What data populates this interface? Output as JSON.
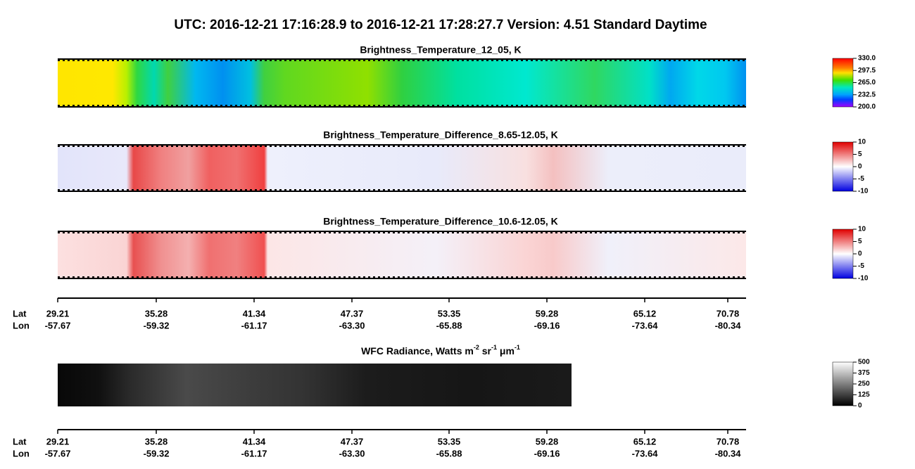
{
  "header": {
    "title": "UTC:  2016-12-21   17:16:28.9  to  2016-12-21   17:28:27.7    Version: 4.51  Standard Daytime"
  },
  "panels": [
    {
      "title": "Brightness_Temperature_12_05, K",
      "colorbar": [
        "330.0",
        "297.5",
        "265.0",
        "232.5",
        "200.0"
      ]
    },
    {
      "title": "Brightness_Temperature_Difference_8.65-12.05, K",
      "colorbar": [
        "10",
        "5",
        "0",
        "-5",
        "-10"
      ]
    },
    {
      "title": "Brightness_Temperature_Difference_10.6-12.05, K",
      "colorbar": [
        "10",
        "5",
        "0",
        "-5",
        "-10"
      ]
    },
    {
      "title_parts": [
        "WFC Radiance, Watts m",
        "-2",
        " sr",
        "-1",
        " μm",
        "-1"
      ],
      "colorbar": [
        "500",
        "375",
        "250",
        "125",
        "0"
      ]
    }
  ],
  "axes": [
    {
      "row_labels": [
        "Lat",
        "Lon"
      ],
      "lat": [
        "29.21",
        "35.28",
        "41.34",
        "47.37",
        "53.35",
        "59.28",
        "65.12",
        "70.78"
      ],
      "lon": [
        "-57.67",
        "-59.32",
        "-61.17",
        "-63.30",
        "-65.88",
        "-69.16",
        "-73.64",
        "-80.34"
      ]
    },
    {
      "row_labels": [
        "Lat",
        "Lon"
      ],
      "lat": [
        "29.21",
        "35.28",
        "41.34",
        "47.37",
        "53.35",
        "59.28",
        "65.12",
        "70.78"
      ],
      "lon": [
        "-57.67",
        "-59.32",
        "-61.17",
        "-63.30",
        "-65.88",
        "-69.16",
        "-73.64",
        "-80.34"
      ]
    }
  ]
}
